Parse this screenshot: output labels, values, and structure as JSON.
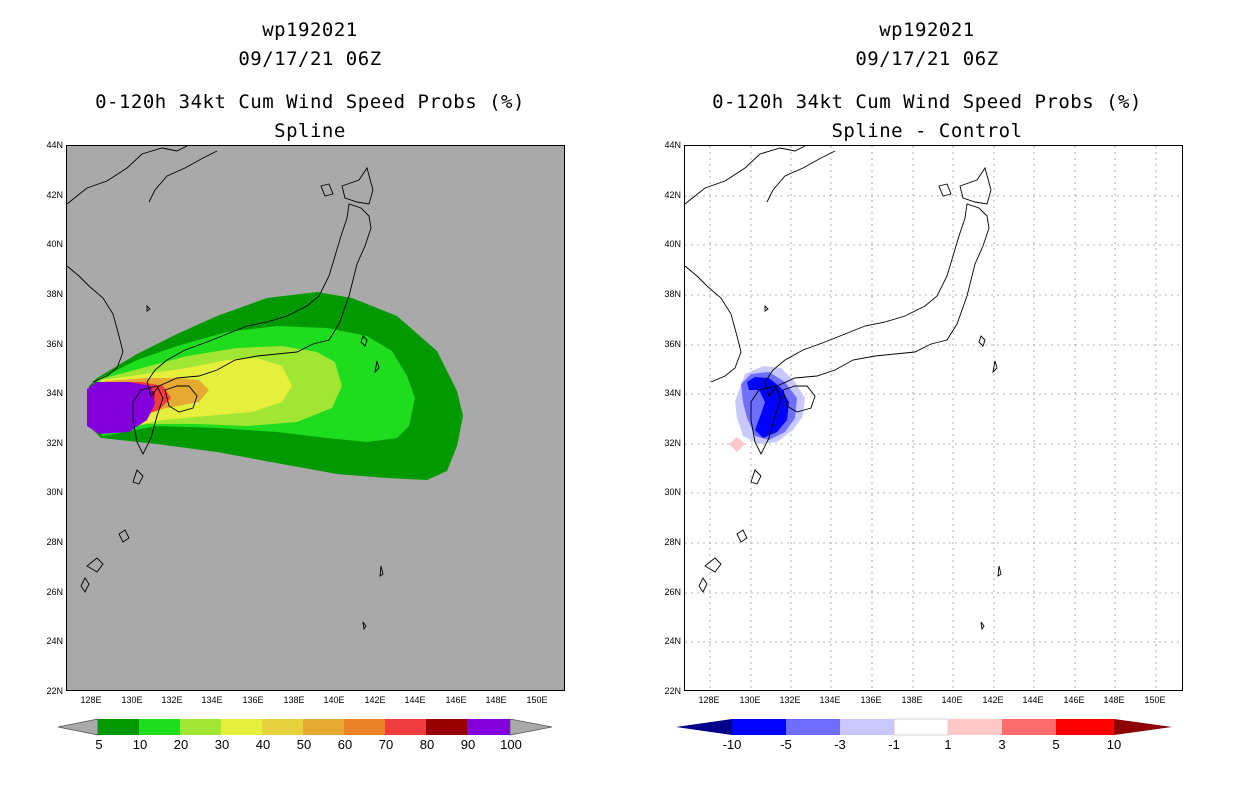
{
  "panels": [
    {
      "id": "left",
      "title_lines": [
        "wp192021",
        "09/17/21 06Z",
        "0-120h 34kt Cum Wind Speed Probs (%)",
        "Spline"
      ],
      "background": "#a9a9a9",
      "lat_labels": [
        "44N",
        "42N",
        "40N",
        "38N",
        "36N",
        "34N",
        "32N",
        "30N",
        "28N",
        "26N",
        "24N",
        "22N"
      ],
      "lon_labels": [
        "128E",
        "130E",
        "132E",
        "134E",
        "136E",
        "138E",
        "140E",
        "142E",
        "144E",
        "146E",
        "148E",
        "150E"
      ],
      "colorbar": {
        "labels": [
          "5",
          "10",
          "20",
          "30",
          "40",
          "50",
          "60",
          "70",
          "80",
          "90",
          "100"
        ],
        "colors": [
          "#009a00",
          "#1edc1e",
          "#a0e632",
          "#e6f03c",
          "#e6d23c",
          "#e6aa32",
          "#ec8228",
          "#f03c3c",
          "#960000",
          "#8200dc"
        ]
      }
    },
    {
      "id": "right",
      "title_lines": [
        "wp192021",
        "09/17/21 06Z",
        "0-120h 34kt Cum Wind Speed Probs (%)",
        "Spline - Control"
      ],
      "background": "#ffffff",
      "lat_labels": [
        "44N",
        "42N",
        "40N",
        "38N",
        "36N",
        "34N",
        "32N",
        "30N",
        "28N",
        "26N",
        "24N",
        "22N"
      ],
      "lon_labels": [
        "128E",
        "130E",
        "132E",
        "134E",
        "136E",
        "138E",
        "140E",
        "142E",
        "144E",
        "146E",
        "148E",
        "150E"
      ],
      "colorbar": {
        "labels": [
          "-10",
          "-5",
          "-3",
          "-1",
          "1",
          "3",
          "5",
          "10"
        ],
        "colors": [
          "#0000ff",
          "#6e6eff",
          "#c8c8ff",
          "#ffffff",
          "#ffc8c8",
          "#ff6e6e",
          "#ff0000"
        ],
        "end_low": "#00008c",
        "end_high": "#8c0000"
      }
    }
  ]
}
